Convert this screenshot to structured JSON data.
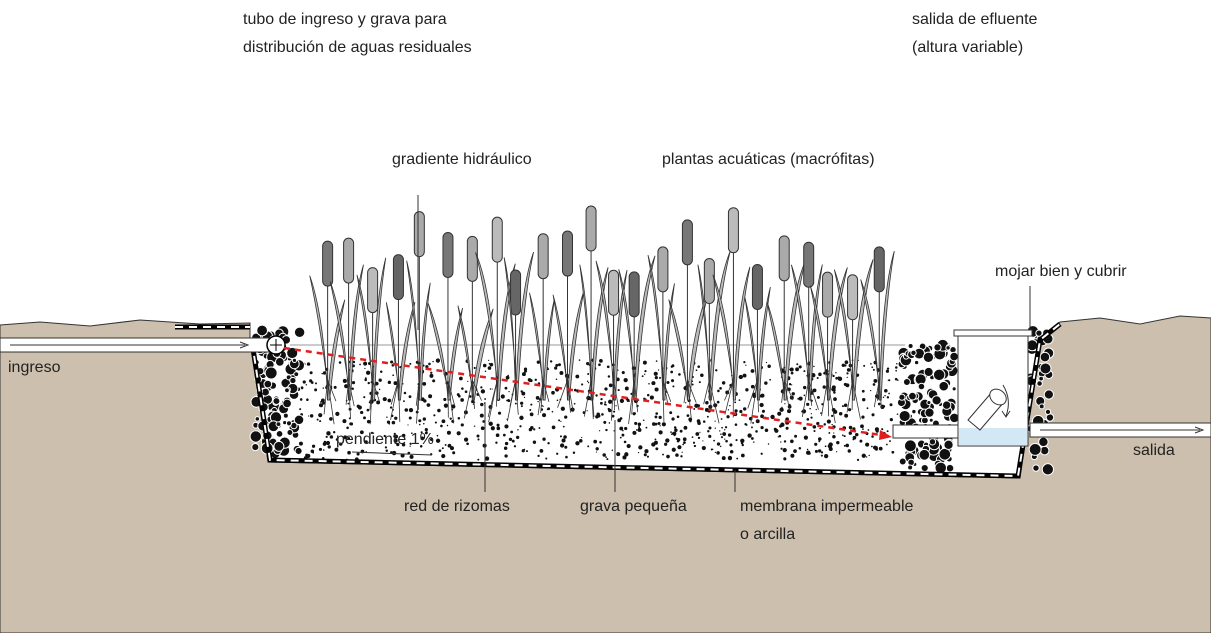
{
  "labels": [
    {
      "lines": [
        "tubo de ingreso y grava para",
        "distribución de aguas residuales"
      ]
    },
    {
      "lines": [
        "salida de efluente",
        "(altura variable)"
      ]
    },
    {
      "lines": [
        "gradiente hidráulico"
      ]
    },
    {
      "lines": [
        "plantas acuáticas (macrófitas)"
      ]
    },
    {
      "lines": [
        "mojar bien y cubrir"
      ]
    },
    {
      "lines": [
        "ingreso"
      ]
    },
    {
      "lines": [
        "salida"
      ]
    },
    {
      "lines": [
        "pendiente 1%"
      ]
    },
    {
      "lines": [
        "red de rizomas"
      ]
    },
    {
      "lines": [
        "grava pequeña"
      ]
    },
    {
      "lines": [
        "membrana impermeable",
        "o arcilla"
      ]
    }
  ]
}
